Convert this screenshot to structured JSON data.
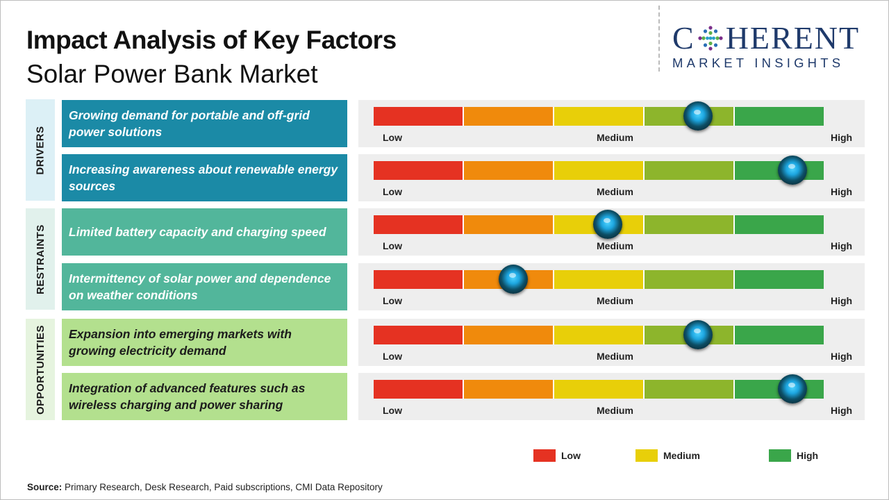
{
  "title": "Impact Analysis of Key Factors",
  "subtitle": "Solar Power Bank Market",
  "logo": {
    "main_left": "C",
    "main_right": "HERENT",
    "sub": "MARKET INSIGHTS"
  },
  "categories": {
    "drivers": "DRIVERS",
    "restraints": "RESTRAINTS",
    "opportunities": "OPPORTUNITIES"
  },
  "scale_labels": {
    "low": "Low",
    "medium": "Medium",
    "high": "High"
  },
  "colors": {
    "segments": [
      "#e53222",
      "#f08a0c",
      "#e8cf09",
      "#8db52c",
      "#3aa64a"
    ],
    "drivers": "#1b8aa6",
    "restraints": "#52b69b",
    "opportunities": "#b3e08e"
  },
  "chart_data": {
    "type": "gauge",
    "title": "Impact Analysis of Key Factors",
    "subtitle": "Solar Power Bank Market",
    "scale": [
      "Low",
      "Medium",
      "High"
    ],
    "range": [
      0,
      1
    ],
    "factors": [
      {
        "category": "Drivers",
        "label": "Growing demand for portable and off-grid power solutions",
        "impact": 0.72
      },
      {
        "category": "Drivers",
        "label": "Increasing awareness about renewable energy sources",
        "impact": 0.93
      },
      {
        "category": "Restraints",
        "label": "Limited battery capacity and charging speed",
        "impact": 0.52
      },
      {
        "category": "Restraints",
        "label": "Intermittency of solar power and dependence on weather conditions",
        "impact": 0.31
      },
      {
        "category": "Opportunities",
        "label": "Expansion into emerging markets with growing electricity demand",
        "impact": 0.72
      },
      {
        "category": "Opportunities",
        "label": "Integration of advanced features such as wireless charging and power sharing",
        "impact": 0.93
      }
    ]
  },
  "legend": [
    {
      "label": "Low",
      "color": "#e53222"
    },
    {
      "label": "Medium",
      "color": "#e8cf09"
    },
    {
      "label": "High",
      "color": "#3aa64a"
    }
  ],
  "source": {
    "label": "Source:",
    "text": "Primary Research, Desk Research, Paid subscriptions, CMI Data Repository"
  }
}
